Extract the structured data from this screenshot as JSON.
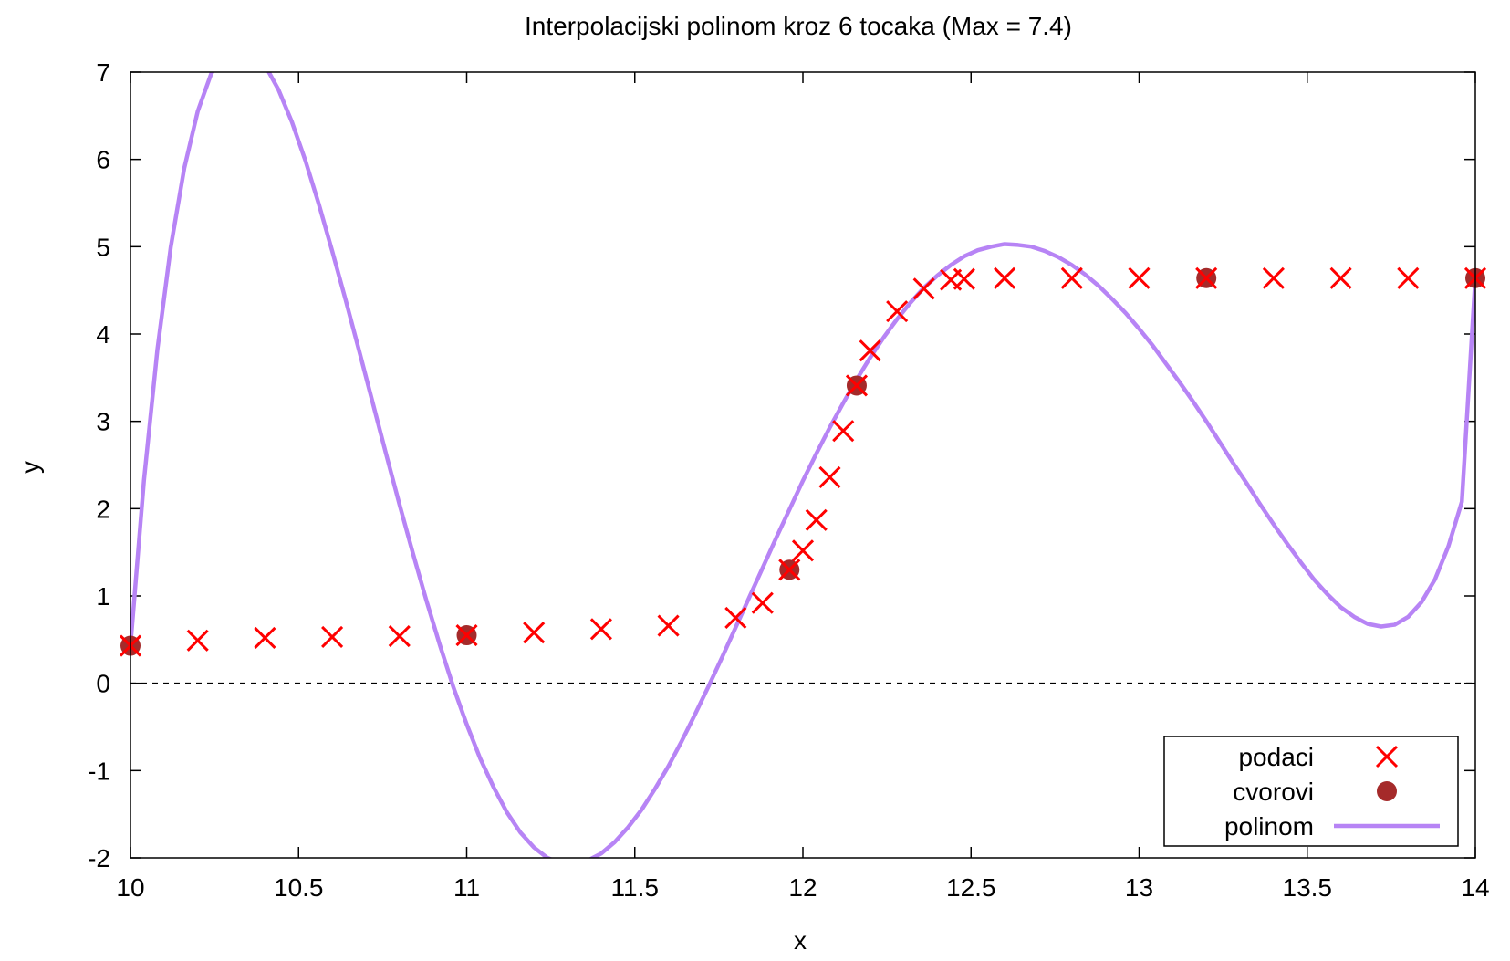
{
  "chart_data": {
    "type": "scatter",
    "title": "Interpolacijski polinom kroz 6 tocaka (Max = 7.4)",
    "xlabel": "x",
    "ylabel": "y",
    "xlim": [
      10,
      14
    ],
    "ylim": [
      -2,
      7
    ],
    "xticks": [
      10,
      10.5,
      11,
      11.5,
      12,
      12.5,
      13,
      13.5,
      14
    ],
    "xtick_labels": [
      "10",
      "10.5",
      "11",
      "11.5",
      "12",
      "12.5",
      "13",
      "13.5",
      "14"
    ],
    "yticks": [
      -2,
      -1,
      0,
      1,
      2,
      3,
      4,
      5,
      6,
      7
    ],
    "ytick_labels": [
      "-2",
      "-1",
      "0",
      "1",
      "2",
      "3",
      "4",
      "5",
      "6",
      "7"
    ],
    "grid": false,
    "zero_line": true,
    "legend_position": "bottom-right",
    "series": [
      {
        "name": "podaci",
        "type": "scatter",
        "marker": "x",
        "color": "#ff0000",
        "x": [
          10.0,
          10.2,
          10.4,
          10.6,
          10.8,
          11.0,
          11.2,
          11.4,
          11.6,
          11.8,
          11.88,
          11.96,
          12.0,
          12.04,
          12.08,
          12.12,
          12.16,
          12.2,
          12.28,
          12.36,
          12.44,
          12.48,
          12.6,
          12.8,
          13.0,
          13.2,
          13.4,
          13.6,
          13.8,
          14.0
        ],
        "y": [
          0.43,
          0.49,
          0.52,
          0.53,
          0.54,
          0.55,
          0.58,
          0.62,
          0.66,
          0.75,
          0.92,
          1.3,
          1.52,
          1.87,
          2.36,
          2.89,
          3.41,
          3.81,
          4.26,
          4.52,
          4.62,
          4.63,
          4.64,
          4.64,
          4.64,
          4.64,
          4.64,
          4.64,
          4.64,
          4.64
        ]
      },
      {
        "name": "cvorovi",
        "type": "scatter",
        "marker": "circle",
        "color": "#a52a2a",
        "x": [
          10.0,
          11.0,
          11.96,
          12.16,
          13.2,
          14.0
        ],
        "y": [
          0.43,
          0.55,
          1.3,
          3.41,
          4.64,
          4.64
        ]
      },
      {
        "name": "polinom",
        "type": "line",
        "color": "#b784f5",
        "x": [
          10.0,
          10.04,
          10.08,
          10.12,
          10.16,
          10.2,
          10.24,
          10.28,
          10.32,
          10.36,
          10.4,
          10.44,
          10.48,
          10.52,
          10.56,
          10.6,
          10.64,
          10.68,
          10.72,
          10.76,
          10.8,
          10.84,
          10.88,
          10.92,
          10.96,
          11.0,
          11.04,
          11.08,
          11.12,
          11.16,
          11.2,
          11.24,
          11.28,
          11.32,
          11.36,
          11.4,
          11.44,
          11.48,
          11.52,
          11.56,
          11.6,
          11.64,
          11.68,
          11.72,
          11.76,
          11.8,
          11.84,
          11.88,
          11.92,
          11.96,
          12.0,
          12.04,
          12.08,
          12.12,
          12.16,
          12.2,
          12.24,
          12.28,
          12.32,
          12.36,
          12.4,
          12.44,
          12.48,
          12.52,
          12.56,
          12.6,
          12.64,
          12.68,
          12.72,
          12.76,
          12.8,
          12.84,
          12.88,
          12.92,
          12.96,
          13.0,
          13.04,
          13.08,
          13.12,
          13.16,
          13.2,
          13.24,
          13.28,
          13.32,
          13.36,
          13.4,
          13.44,
          13.48,
          13.52,
          13.56,
          13.6,
          13.64,
          13.68,
          13.72,
          13.76,
          13.8,
          13.84,
          13.88,
          13.92,
          13.96,
          14.0
        ],
        "y": [
          0.43,
          2.32,
          3.82,
          5.0,
          5.9,
          6.55,
          6.98,
          7.23,
          7.32,
          7.26,
          7.08,
          6.8,
          6.43,
          5.99,
          5.49,
          4.95,
          4.39,
          3.81,
          3.22,
          2.63,
          2.05,
          1.49,
          0.95,
          0.44,
          -0.04,
          -0.47,
          -0.86,
          -1.19,
          -1.48,
          -1.71,
          -1.88,
          -2.0,
          -2.06,
          -2.07,
          -2.03,
          -1.95,
          -1.82,
          -1.65,
          -1.45,
          -1.21,
          -0.95,
          -0.66,
          -0.35,
          -0.03,
          0.3,
          0.64,
          0.98,
          1.32,
          1.66,
          1.99,
          2.32,
          2.63,
          2.93,
          3.21,
          3.48,
          3.73,
          3.96,
          4.17,
          4.36,
          4.53,
          4.67,
          4.79,
          4.89,
          4.96,
          5.0,
          5.03,
          5.02,
          5.0,
          4.95,
          4.88,
          4.79,
          4.68,
          4.55,
          4.4,
          4.24,
          4.06,
          3.87,
          3.66,
          3.45,
          3.23,
          3.0,
          2.76,
          2.52,
          2.29,
          2.05,
          1.82,
          1.6,
          1.39,
          1.19,
          1.02,
          0.87,
          0.76,
          0.68,
          0.65,
          0.67,
          0.76,
          0.93,
          1.19,
          1.57,
          2.08,
          4.64
        ]
      }
    ]
  }
}
